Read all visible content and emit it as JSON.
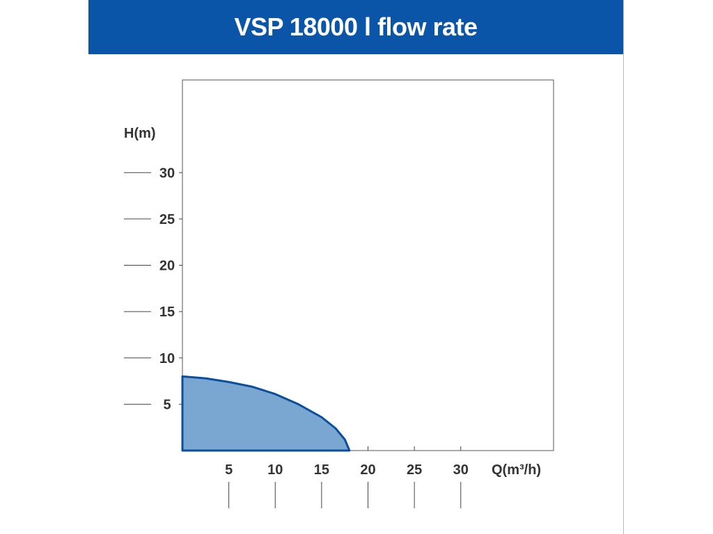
{
  "chart_data": {
    "type": "area",
    "title": "VSP 18000 l flow rate",
    "xlabel": "Q(m³/h)",
    "ylabel": "H(m)",
    "xlim": [
      0,
      40
    ],
    "ylim": [
      0,
      40
    ],
    "xticks": [
      5,
      10,
      15,
      20,
      25,
      30
    ],
    "yticks": [
      5,
      10,
      15,
      20,
      25,
      30
    ],
    "grid": false,
    "fill_color": "#7aa7d2",
    "line_color": "#0b4f9c",
    "banner_color": "#0b55a8",
    "series": [
      {
        "x": [
          0,
          2.5,
          5,
          7.5,
          10,
          12.5,
          15,
          16.5,
          17.5,
          18
        ],
        "y": [
          8,
          7.8,
          7.4,
          6.9,
          6.1,
          5.0,
          3.6,
          2.4,
          1.2,
          0
        ]
      }
    ]
  }
}
